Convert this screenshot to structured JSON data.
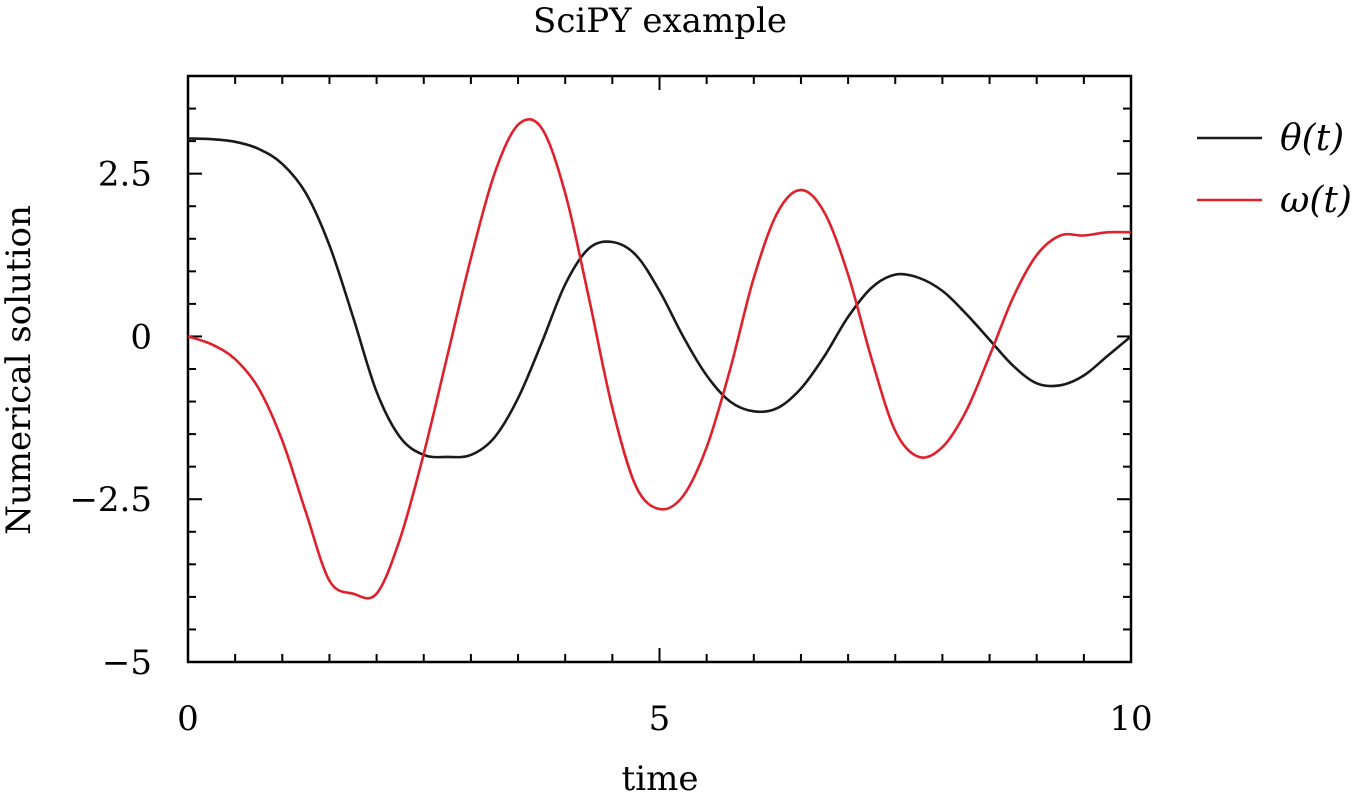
{
  "chart_data": {
    "type": "line",
    "title": "SciPY example",
    "xlabel": "time",
    "ylabel": "Numerical solution",
    "xlim": [
      0,
      10
    ],
    "ylim": [
      -5,
      4
    ],
    "xticks": [
      0,
      5,
      10
    ],
    "xtick_labels": [
      "0",
      "5",
      "10"
    ],
    "yticks": [
      -5,
      -2.5,
      0,
      2.5
    ],
    "ytick_labels": [
      "−5",
      "−2.5",
      "0",
      "2.5"
    ],
    "x_minor_step": 0.5,
    "y_minor_step": 0.5,
    "grid": false,
    "legend_position": "outside-top-right",
    "series": [
      {
        "name": "θ(t)",
        "color": "#1a1a1a",
        "x": [
          0.0,
          0.25,
          0.5,
          0.75,
          1.0,
          1.25,
          1.5,
          1.75,
          2.0,
          2.25,
          2.5,
          2.75,
          3.0,
          3.25,
          3.5,
          3.75,
          4.0,
          4.25,
          4.5,
          4.75,
          5.0,
          5.25,
          5.5,
          5.75,
          6.0,
          6.25,
          6.5,
          6.75,
          7.0,
          7.25,
          7.5,
          7.75,
          8.0,
          8.25,
          8.5,
          8.75,
          9.0,
          9.25,
          9.5,
          9.75,
          10.0
        ],
        "y": [
          3.04,
          3.03,
          2.99,
          2.88,
          2.65,
          2.2,
          1.4,
          0.3,
          -0.85,
          -1.55,
          -1.82,
          -1.85,
          -1.82,
          -1.55,
          -0.95,
          -0.1,
          0.8,
          1.35,
          1.45,
          1.25,
          0.7,
          0.0,
          -0.6,
          -1.0,
          -1.15,
          -1.1,
          -0.8,
          -0.3,
          0.3,
          0.75,
          0.95,
          0.9,
          0.7,
          0.35,
          -0.05,
          -0.45,
          -0.72,
          -0.75,
          -0.6,
          -0.3,
          0.0
        ]
      },
      {
        "name": "ω(t)",
        "color": "#e0202a",
        "x": [
          0.0,
          0.25,
          0.5,
          0.75,
          1.0,
          1.25,
          1.5,
          1.75,
          2.0,
          2.25,
          2.5,
          2.75,
          3.0,
          3.25,
          3.5,
          3.75,
          4.0,
          4.25,
          4.5,
          4.75,
          5.0,
          5.25,
          5.5,
          5.75,
          6.0,
          6.25,
          6.5,
          6.75,
          7.0,
          7.25,
          7.5,
          7.75,
          8.0,
          8.25,
          8.5,
          8.75,
          9.0,
          9.25,
          9.5,
          9.75,
          10.0
        ],
        "y": [
          0.0,
          -0.12,
          -0.35,
          -0.8,
          -1.6,
          -2.7,
          -3.75,
          -3.95,
          -3.95,
          -3.1,
          -1.8,
          -0.3,
          1.2,
          2.5,
          3.25,
          3.2,
          2.2,
          0.6,
          -1.1,
          -2.3,
          -2.65,
          -2.45,
          -1.7,
          -0.5,
          0.9,
          1.9,
          2.25,
          1.9,
          0.95,
          -0.35,
          -1.45,
          -1.85,
          -1.7,
          -1.15,
          -0.3,
          0.6,
          1.25,
          1.55,
          1.55,
          1.6,
          1.6
        ]
      }
    ]
  }
}
